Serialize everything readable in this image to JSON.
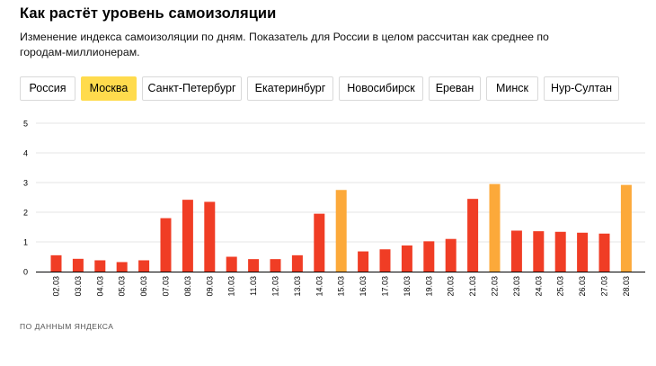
{
  "header": {
    "title": "Как растёт уровень самоизоляции",
    "subtitle": "Изменение индекса самоизоляции по дням. Показатель для России в целом рассчитан как среднее по городам-миллионерам."
  },
  "tabs": [
    {
      "label": "Россия",
      "active": false
    },
    {
      "label": "Москва",
      "active": true
    },
    {
      "label": "Санкт-Петербург",
      "active": false
    },
    {
      "label": "Екатеринбург",
      "active": false
    },
    {
      "label": "Новосибирск",
      "active": false
    },
    {
      "label": "Ереван",
      "active": false
    },
    {
      "label": "Минск",
      "active": false
    },
    {
      "label": "Нур-Султан",
      "active": false
    }
  ],
  "colors": {
    "weekday": "#f03d25",
    "weekend": "#fca93a",
    "grid": "#e6e6e6",
    "axis": "#000000",
    "active_tab": "#ffdb4d"
  },
  "chart_data": {
    "type": "bar",
    "title": "",
    "xlabel": "",
    "ylabel": "",
    "ylim": [
      0,
      5
    ],
    "yticks": [
      0,
      1,
      2,
      3,
      4,
      5
    ],
    "grid": true,
    "categories": [
      "02.03",
      "03.03",
      "04.03",
      "05.03",
      "06.03",
      "07.03",
      "08.03",
      "09.03",
      "10.03",
      "11.03",
      "12.03",
      "13.03",
      "14.03",
      "15.03",
      "16.03",
      "17.03",
      "18.03",
      "19.03",
      "20.03",
      "21.03",
      "22.03",
      "23.03",
      "24.03",
      "25.03",
      "26.03",
      "27.03",
      "28.03"
    ],
    "values": [
      0.55,
      0.43,
      0.38,
      0.32,
      0.38,
      1.8,
      2.42,
      2.35,
      0.5,
      0.42,
      0.42,
      0.55,
      1.95,
      2.75,
      0.68,
      0.75,
      0.88,
      1.02,
      1.1,
      2.45,
      2.95,
      1.38,
      1.36,
      1.34,
      1.31,
      1.28,
      2.92
    ],
    "highlight": [
      false,
      false,
      false,
      false,
      false,
      false,
      false,
      false,
      false,
      false,
      false,
      false,
      false,
      true,
      false,
      false,
      false,
      false,
      false,
      false,
      true,
      false,
      false,
      false,
      false,
      false,
      true
    ]
  },
  "footer": {
    "source": "ПО ДАННЫМ ЯНДЕКСА"
  }
}
